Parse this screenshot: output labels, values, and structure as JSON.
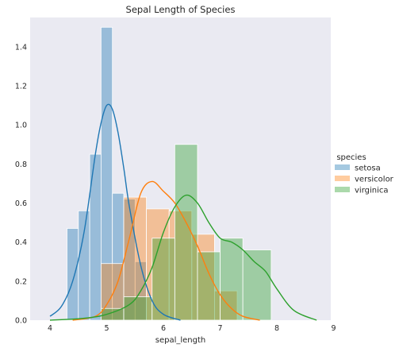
{
  "chart_data": {
    "type": "bar",
    "title": "Sepal Length of Species",
    "xlabel": "sepal_length",
    "ylabel": "",
    "xlim": [
      3.65,
      8.95
    ],
    "ylim": [
      0,
      1.55
    ],
    "xticks": [
      4,
      5,
      6,
      7,
      8,
      9
    ],
    "yticks": [
      0.0,
      0.2,
      0.4,
      0.6,
      0.8,
      1.0,
      1.2,
      1.4
    ],
    "ytick_labels": [
      "0.0",
      "0.2",
      "0.4",
      "0.6",
      "0.8",
      "1.0",
      "1.2",
      "1.4"
    ],
    "grid": false,
    "legend": {
      "title": "species",
      "position": "right",
      "entries": [
        "setosa",
        "versicolor",
        "virginica"
      ]
    },
    "series": [
      {
        "name": "setosa",
        "color": "#1f77b4",
        "hist": {
          "x0": [
            4.3,
            4.5,
            4.7,
            4.9,
            5.1,
            5.3,
            5.5
          ],
          "x1": [
            4.5,
            4.7,
            4.9,
            5.1,
            5.3,
            5.5,
            5.7
          ],
          "density": [
            0.47,
            0.56,
            0.85,
            1.5,
            0.65,
            0.62,
            0.3
          ]
        },
        "kde": {
          "x": [
            4.0,
            4.2,
            4.4,
            4.6,
            4.8,
            4.9,
            5.0,
            5.1,
            5.2,
            5.3,
            5.4,
            5.6,
            5.8,
            6.0,
            6.3
          ],
          "y": [
            0.02,
            0.07,
            0.2,
            0.45,
            0.85,
            1.01,
            1.1,
            1.08,
            0.96,
            0.78,
            0.58,
            0.28,
            0.1,
            0.03,
            0.0
          ]
        }
      },
      {
        "name": "versicolor",
        "color": "#ff7f0e",
        "hist": {
          "x0": [
            4.9,
            5.3,
            5.7,
            6.1,
            6.5,
            6.9
          ],
          "x1": [
            5.3,
            5.7,
            6.1,
            6.5,
            6.9,
            7.3
          ],
          "density": [
            0.29,
            0.63,
            0.57,
            0.56,
            0.44,
            0.15
          ]
        },
        "kde": {
          "x": [
            4.4,
            4.8,
            5.0,
            5.2,
            5.4,
            5.6,
            5.8,
            6.0,
            6.2,
            6.4,
            6.6,
            6.8,
            7.0,
            7.2,
            7.4,
            7.7
          ],
          "y": [
            0.0,
            0.02,
            0.08,
            0.2,
            0.42,
            0.65,
            0.71,
            0.66,
            0.6,
            0.5,
            0.38,
            0.24,
            0.13,
            0.06,
            0.02,
            0.0
          ]
        }
      },
      {
        "name": "virginica",
        "color": "#2ca02c",
        "hist": {
          "x0": [
            4.9,
            5.3,
            5.8,
            6.2,
            6.6,
            7.0,
            7.4
          ],
          "x1": [
            5.3,
            5.8,
            6.2,
            6.6,
            7.0,
            7.4,
            7.9
          ],
          "density": [
            0.06,
            0.12,
            0.42,
            0.9,
            0.35,
            0.42,
            0.36
          ]
        },
        "kde": {
          "x": [
            4.0,
            4.6,
            5.0,
            5.4,
            5.6,
            5.8,
            6.0,
            6.2,
            6.4,
            6.6,
            6.8,
            7.0,
            7.2,
            7.4,
            7.6,
            7.8,
            8.0,
            8.3,
            8.7
          ],
          "y": [
            0.0,
            0.01,
            0.03,
            0.08,
            0.15,
            0.27,
            0.45,
            0.58,
            0.64,
            0.6,
            0.5,
            0.42,
            0.4,
            0.36,
            0.3,
            0.25,
            0.16,
            0.05,
            0.0
          ]
        }
      }
    ]
  }
}
